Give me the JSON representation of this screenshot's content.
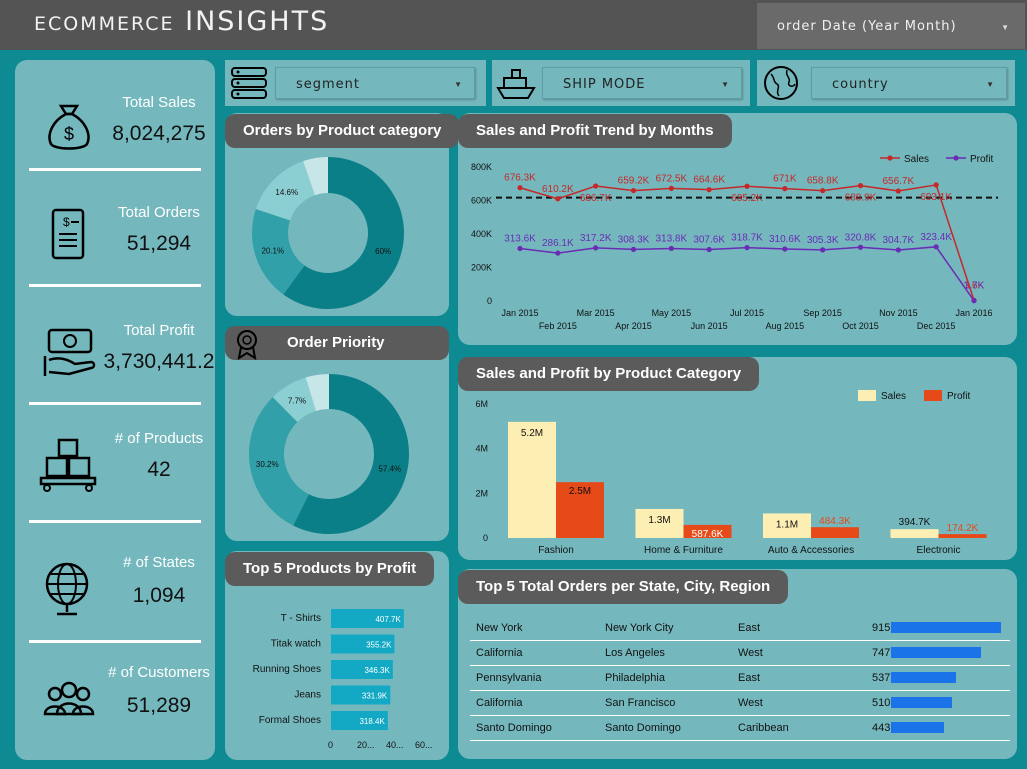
{
  "header": {
    "title": "ecommerce INSIGHTS",
    "order_date_filter": "order Date (Year Month)"
  },
  "filters": {
    "segment": "segment",
    "ship_mode": "SHIP MODE",
    "country": "country"
  },
  "kpis": [
    {
      "label": "Total Sales",
      "value": "8,024,275",
      "icon": "money-bag-icon"
    },
    {
      "label": "Total Orders",
      "value": "51,294",
      "icon": "receipt-icon"
    },
    {
      "label": "Total Profit",
      "value": "3,730,441.2",
      "icon": "cash-hand-icon"
    },
    {
      "label": "# of Products",
      "value": "42",
      "icon": "boxes-icon"
    },
    {
      "label": "# of States",
      "value": "1,094",
      "icon": "globe-icon"
    },
    {
      "label": "# of Customers",
      "value": "51,289",
      "icon": "people-icon"
    }
  ],
  "panels": {
    "orders_by_category": "Orders by Product category",
    "order_priority": "Order Priority",
    "top5_products": "Top 5 Products by Profit",
    "trend": "Sales and Profit Trend by Months",
    "by_category": "Sales and Profit by Product Category",
    "top5_orders": "Top 5  Total Orders per State, City, Region"
  },
  "colors": {
    "sales": "#c62828",
    "profit": "#6a2bb5",
    "bar_sales": "#fdefb4",
    "bar_profit": "#e64a19",
    "bar_hbar": "#13a9c4",
    "blue_bar": "#1a73e8"
  },
  "chart_data": [
    {
      "type": "pie",
      "title": "Orders by Product category",
      "values": [
        60,
        20.1,
        14.6,
        5.3
      ],
      "value_labels": [
        "60%",
        "20.1%",
        "14.6%",
        ""
      ],
      "colors": [
        "#0b7f87",
        "#31a0a8",
        "#8ccfd3",
        "#c6e6e8"
      ]
    },
    {
      "type": "pie",
      "title": "Order Priority",
      "values": [
        57.4,
        30.2,
        7.7,
        4.7
      ],
      "value_labels": [
        "57.4%",
        "30.2%",
        "7.7%",
        ""
      ],
      "colors": [
        "#0b7f87",
        "#31a0a8",
        "#8ccfd3",
        "#c6e6e8"
      ]
    },
    {
      "type": "line",
      "title": "Sales and Profit Trend by Months",
      "categories": [
        "Jan 2015",
        "Feb 2015",
        "Mar 2015",
        "Apr 2015",
        "May 2015",
        "Jun 2015",
        "Jul 2015",
        "Aug 2015",
        "Sep 2015",
        "Oct 2015",
        "Nov 2015",
        "Dec 2015",
        "Jan 2016"
      ],
      "series": [
        {
          "name": "Sales",
          "values": [
            676.3,
            610.2,
            686.7,
            659.2,
            672.5,
            664.6,
            685.2,
            671,
            658.8,
            688.9,
            656.7,
            693.1,
            3.6
          ],
          "labels": [
            "676.3K",
            "610.2K",
            "686.7K",
            "659.2K",
            "672.5K",
            "664.6K",
            "685.2K",
            "671K",
            "658.8K",
            "688.9K",
            "656.7K",
            "693.1K",
            "3.6K"
          ]
        },
        {
          "name": "Profit",
          "values": [
            313.6,
            286.1,
            317.2,
            308.3,
            313.8,
            307.6,
            318.7,
            310.6,
            305.3,
            320.8,
            304.7,
            323.4,
            1.7
          ],
          "labels": [
            "313.6K",
            "286.1K",
            "317.2K",
            "308.3K",
            "313.8K",
            "307.6K",
            "318.7K",
            "310.6K",
            "305.3K",
            "320.8K",
            "304.7K",
            "323.4K",
            "1.7K"
          ]
        }
      ],
      "reference_line": 617,
      "yticks": [
        "0",
        "200K",
        "400K",
        "600K",
        "800K"
      ],
      "ylim": [
        0,
        800
      ],
      "legend": "top-right"
    },
    {
      "type": "bar",
      "title": "Sales and Profit by Product Category",
      "categories": [
        "Fashion",
        "Home & Furniture",
        "Auto & Accessories",
        "Electronic"
      ],
      "series": [
        {
          "name": "Sales",
          "values": [
            5.2,
            1.3,
            1.1,
            0.3947
          ],
          "labels": [
            "5.2M",
            "1.3M",
            "1.1M",
            "394.7K"
          ]
        },
        {
          "name": "Profit",
          "values": [
            2.5,
            0.5876,
            0.4843,
            0.1742
          ],
          "labels": [
            "2.5M",
            "587.6K",
            "484.3K",
            "174.2K"
          ]
        }
      ],
      "yticks": [
        "0",
        "2M",
        "4M",
        "6M"
      ],
      "ylim": [
        0,
        6
      ],
      "legend": "top-right"
    },
    {
      "type": "bar",
      "title": "Top 5 Products by Profit",
      "orientation": "horizontal",
      "categories": [
        "T - Shirts",
        "Titak watch",
        "Running Shoes",
        "Jeans",
        "Formal Shoes"
      ],
      "values": [
        407.7,
        355.2,
        346.3,
        331.9,
        318.4
      ],
      "labels": [
        "407.7K",
        "355.2K",
        "346.3K",
        "331.9K",
        "318.4K"
      ],
      "xticks": [
        "0",
        "20...",
        "40...",
        "60..."
      ]
    },
    {
      "type": "table",
      "title": "Top 5  Total Orders per State, City, Region",
      "rows": [
        {
          "state": "New York",
          "city": "New York City",
          "region": "East",
          "orders": 915
        },
        {
          "state": "California",
          "city": "Los Angeles",
          "region": "West",
          "orders": 747
        },
        {
          "state": "Pennsylvania",
          "city": "Philadelphia",
          "region": "East",
          "orders": 537
        },
        {
          "state": "California",
          "city": "San Francisco",
          "region": "West",
          "orders": 510
        },
        {
          "state": "Santo Domingo",
          "city": "Santo Domingo",
          "region": "Caribbean",
          "orders": 443
        }
      ]
    }
  ]
}
